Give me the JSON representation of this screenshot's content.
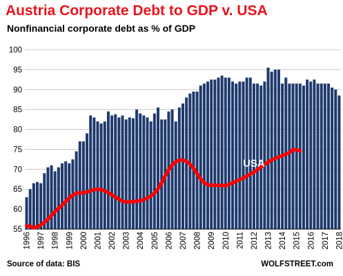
{
  "chart_data": {
    "type": "bar",
    "title": "Austria Corporate Debt to GDP v. USA",
    "subtitle": "Nonfinancial corporate debt as % of GDP",
    "ylim": [
      55,
      100
    ],
    "yticks": [
      55,
      60,
      65,
      70,
      75,
      80,
      85,
      90,
      95,
      100
    ],
    "x_tick_labels": [
      "1996",
      "1997",
      "1998",
      "1999",
      "2000",
      "2001",
      "2002",
      "2003",
      "2004",
      "2005",
      "2006",
      "2007",
      "2008",
      "2009",
      "2010",
      "2011",
      "2012",
      "2013",
      "2014",
      "2015",
      "2016",
      "2017",
      "2018"
    ],
    "quarters_per_year": 4,
    "grid": "horizontal",
    "series": [
      {
        "name": "Austria",
        "type": "bar",
        "values": [
          63.0,
          65.0,
          66.5,
          66.8,
          66.5,
          69.0,
          70.5,
          71.0,
          69.5,
          70.5,
          71.5,
          72.0,
          71.5,
          72.5,
          74.5,
          77.0,
          77.0,
          79.0,
          83.5,
          83.0,
          82.0,
          81.5,
          82.0,
          84.5,
          83.5,
          83.8,
          83.0,
          83.5,
          82.5,
          83.0,
          82.8,
          85.0,
          84.0,
          83.5,
          83.0,
          82.0,
          84.0,
          85.5,
          82.5,
          82.5,
          84.5,
          85.0,
          82.0,
          85.5,
          86.5,
          88.0,
          89.0,
          89.5,
          89.5,
          91.0,
          91.5,
          92.0,
          92.5,
          92.5,
          93.0,
          93.5,
          93.0,
          93.0,
          92.0,
          91.5,
          92.0,
          92.0,
          93.0,
          93.0,
          91.5,
          91.5,
          91.0,
          92.0,
          95.5,
          94.5,
          95.0,
          95.0,
          91.5,
          93.0,
          91.5,
          91.5,
          91.5,
          91.5,
          91.0,
          92.5,
          92.0,
          92.5,
          91.5,
          91.5,
          91.5,
          91.5,
          90.5,
          90.0,
          88.5
        ]
      },
      {
        "name": "USA",
        "type": "line",
        "values": [
          55.8,
          55.7,
          55.3,
          55.6,
          56.0,
          56.7,
          57.5,
          58.4,
          59.4,
          60.2,
          61.0,
          61.9,
          62.8,
          63.5,
          64.0,
          64.1,
          64.1,
          64.3,
          64.6,
          64.9,
          65.0,
          64.9,
          64.6,
          64.1,
          63.6,
          63.0,
          62.5,
          62.0,
          61.8,
          61.8,
          61.9,
          62.0,
          62.1,
          62.4,
          62.8,
          63.3,
          64.0,
          65.1,
          66.6,
          68.3,
          69.9,
          71.1,
          71.9,
          72.3,
          72.3,
          72.0,
          71.3,
          70.2,
          68.9,
          67.6,
          66.6,
          66.1,
          66.0,
          66.0,
          66.0,
          65.9,
          65.9,
          66.2,
          66.6,
          67.0,
          67.4,
          67.8,
          68.3,
          68.8,
          69.3,
          69.9,
          70.6,
          71.2,
          71.8,
          72.3,
          72.7,
          73.1,
          73.4,
          73.8,
          74.2,
          74.9,
          74.9,
          74.6
        ],
        "start_index": 0,
        "annotation": "USA"
      }
    ],
    "colors": {
      "bars": "#1f3a6e",
      "line": "#ff0000",
      "title": "#e8141c",
      "grid": "#c8c8c8"
    }
  },
  "footer": {
    "source": "Source of data: BIS",
    "brand": "WOLFSTREET.com"
  }
}
